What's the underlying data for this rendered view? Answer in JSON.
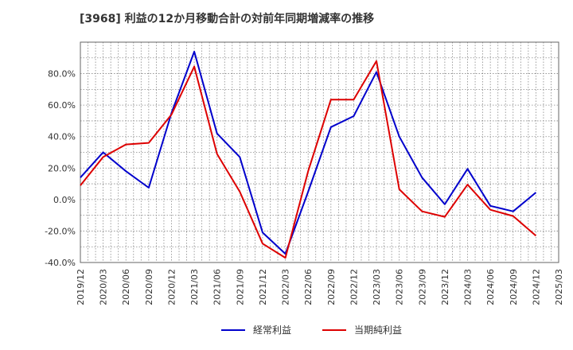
{
  "chart_data": {
    "type": "line",
    "title": "[3968]  利益の12か月移動合計の対前年同期増減率の推移",
    "xlabel": "",
    "ylabel": "",
    "ylim": [
      -40,
      100
    ],
    "yticks": [
      -40,
      -20,
      0,
      20,
      40,
      60,
      80
    ],
    "ytick_labels": [
      "-40.0%",
      "-20.0%",
      "0.0%",
      "20.0%",
      "40.0%",
      "60.0%",
      "80.0%"
    ],
    "categories": [
      "2019/12",
      "2020/03",
      "2020/06",
      "2020/09",
      "2020/12",
      "2021/03",
      "2021/06",
      "2021/09",
      "2021/12",
      "2022/03",
      "2022/06",
      "2022/09",
      "2022/12",
      "2023/03",
      "2023/06",
      "2023/09",
      "2023/12",
      "2024/03",
      "2024/06",
      "2024/09",
      "2024/12",
      "2025/03"
    ],
    "grid": true,
    "legend_position": "bottom",
    "series": [
      {
        "name": "経常利益",
        "color": "#0000cc",
        "values": [
          14,
          30,
          18,
          7.5,
          55,
          94,
          42,
          27,
          -21,
          -34.5,
          5,
          46,
          53,
          81,
          40,
          14,
          -3,
          19.5,
          -4,
          -7.5,
          4.5,
          null
        ]
      },
      {
        "name": "当期純利益",
        "color": "#dd0000",
        "values": [
          9,
          27,
          35,
          36,
          54,
          84.5,
          29,
          5,
          -28,
          -37,
          18,
          63.5,
          63.5,
          88,
          6.5,
          -7.5,
          -11,
          9.5,
          -6.5,
          -10.5,
          -23,
          null
        ]
      }
    ]
  }
}
